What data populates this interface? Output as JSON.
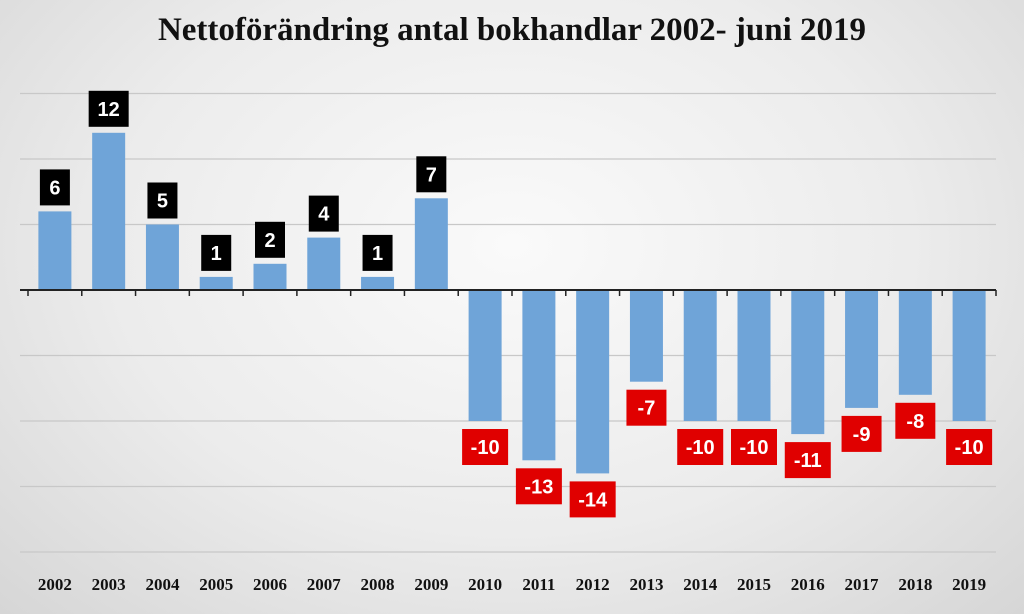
{
  "chart_data": {
    "type": "bar",
    "title": "Nettoförändring antal bokhandlar 2002- juni 2019",
    "xlabel": "",
    "ylabel": "",
    "categories": [
      "2002",
      "2003",
      "2004",
      "2005",
      "2006",
      "2007",
      "2008",
      "2009",
      "2010",
      "2011",
      "2012",
      "2013",
      "2014",
      "2015",
      "2016",
      "2017",
      "2018",
      "2019"
    ],
    "values": [
      6,
      12,
      5,
      1,
      2,
      4,
      1,
      7,
      -10,
      -13,
      -14,
      -7,
      -10,
      -10,
      -11,
      -9,
      -8,
      -10
    ],
    "ylim": [
      -20,
      15
    ],
    "grid": true,
    "legend": "none",
    "colors": {
      "bar": "#6fa4d8",
      "positive_label_bg": "#000000",
      "negative_label_bg": "#e00000",
      "label_text": "#ffffff",
      "gridline": "#c8c8c8",
      "axis": "#222222"
    }
  }
}
